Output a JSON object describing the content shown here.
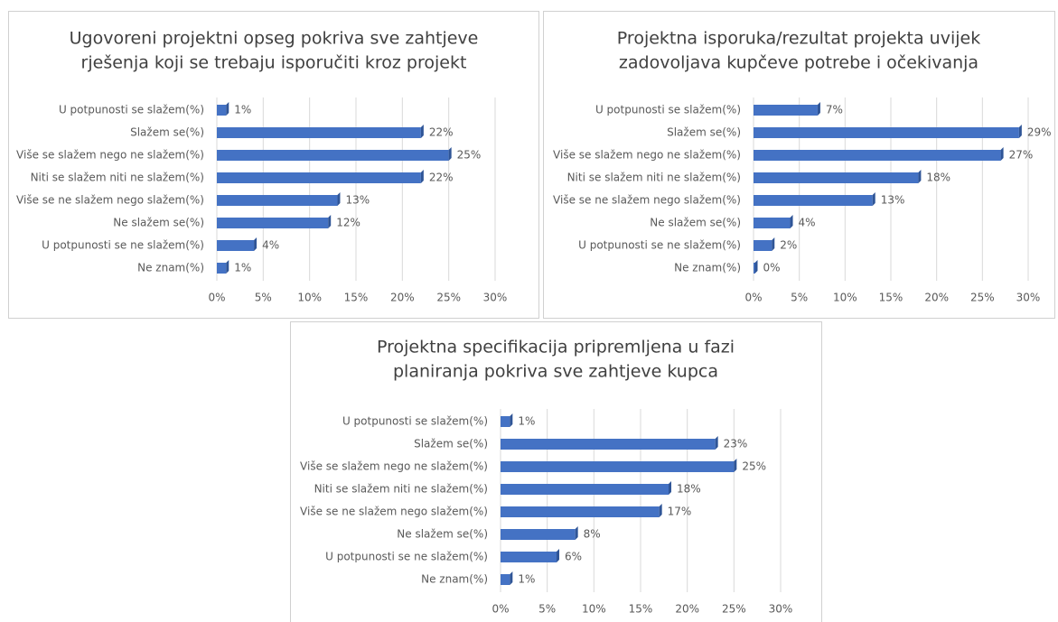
{
  "chart_data": [
    {
      "type": "bar",
      "orientation": "horizontal",
      "title": [
        "Ugovoreni projektni opseg pokriva sve zahtjeve",
        "rješenja koji se trebaju isporučiti kroz projekt"
      ],
      "categories": [
        "U potpunosti se slažem(%)",
        "Slažem se(%)",
        "Više se slažem nego ne slažem(%)",
        "Niti se slažem niti ne slažem(%)",
        "Više se ne slažem nego slažem(%)",
        "Ne slažem se(%)",
        "U potpunosti se ne slažem(%)",
        "Ne znam(%)"
      ],
      "values": [
        1,
        22,
        25,
        22,
        13,
        12,
        4,
        1
      ],
      "value_labels": [
        "1%",
        "22%",
        "25%",
        "22%",
        "13%",
        "12%",
        "4%",
        "1%"
      ],
      "color": "#4472c4",
      "xlim": [
        0,
        30
      ],
      "xticks": [
        {
          "value": 0,
          "label": "0%"
        },
        {
          "value": 5,
          "label": "5%"
        },
        {
          "value": 10,
          "label": "10%"
        },
        {
          "value": 15,
          "label": "15%"
        },
        {
          "value": 20,
          "label": "20%"
        },
        {
          "value": 25,
          "label": "25%"
        },
        {
          "value": 30,
          "label": "30%"
        }
      ],
      "grid": true
    },
    {
      "type": "bar",
      "orientation": "horizontal",
      "title": [
        "Projektna isporuka/rezultat projekta uvijek",
        "zadovoljava kupčeve potrebe i očekivanja"
      ],
      "categories": [
        "U potpunosti se slažem(%)",
        "Slažem se(%)",
        "Više se slažem nego ne slažem(%)",
        "Niti se slažem niti ne slažem(%)",
        "Više se ne slažem nego slažem(%)",
        "Ne slažem se(%)",
        "U potpunosti se ne slažem(%)",
        "Ne znam(%)"
      ],
      "values": [
        7,
        29,
        27,
        18,
        13,
        4,
        2,
        0
      ],
      "value_labels": [
        "7%",
        "29%",
        "27%",
        "18%",
        "13%",
        "4%",
        "2%",
        "0%"
      ],
      "color": "#4472c4",
      "xlim": [
        0,
        30
      ],
      "xticks": [
        {
          "value": 0,
          "label": "0%"
        },
        {
          "value": 5,
          "label": "5%"
        },
        {
          "value": 10,
          "label": "10%"
        },
        {
          "value": 15,
          "label": "15%"
        },
        {
          "value": 20,
          "label": "20%"
        },
        {
          "value": 25,
          "label": "25%"
        },
        {
          "value": 30,
          "label": "30%"
        }
      ],
      "grid": true
    },
    {
      "type": "bar",
      "orientation": "horizontal",
      "title": [
        "Projektna specifikacija pripremljena u fazi",
        "planiranja pokriva sve zahtjeve kupca"
      ],
      "categories": [
        "U potpunosti se slažem(%)",
        "Slažem se(%)",
        "Više se slažem nego ne slažem(%)",
        "Niti se slažem niti ne slažem(%)",
        "Više se ne slažem nego slažem(%)",
        "Ne slažem se(%)",
        "U potpunosti se ne slažem(%)",
        "Ne znam(%)"
      ],
      "values": [
        1,
        23,
        25,
        18,
        17,
        8,
        6,
        1
      ],
      "value_labels": [
        "1%",
        "23%",
        "25%",
        "18%",
        "17%",
        "8%",
        "6%",
        "1%"
      ],
      "color": "#4472c4",
      "xlim": [
        0,
        30
      ],
      "xticks": [
        {
          "value": 0,
          "label": "0%"
        },
        {
          "value": 5,
          "label": "5%"
        },
        {
          "value": 10,
          "label": "10%"
        },
        {
          "value": 15,
          "label": "15%"
        },
        {
          "value": 20,
          "label": "20%"
        },
        {
          "value": 25,
          "label": "25%"
        },
        {
          "value": 30,
          "label": "30%"
        }
      ],
      "grid": true
    }
  ]
}
